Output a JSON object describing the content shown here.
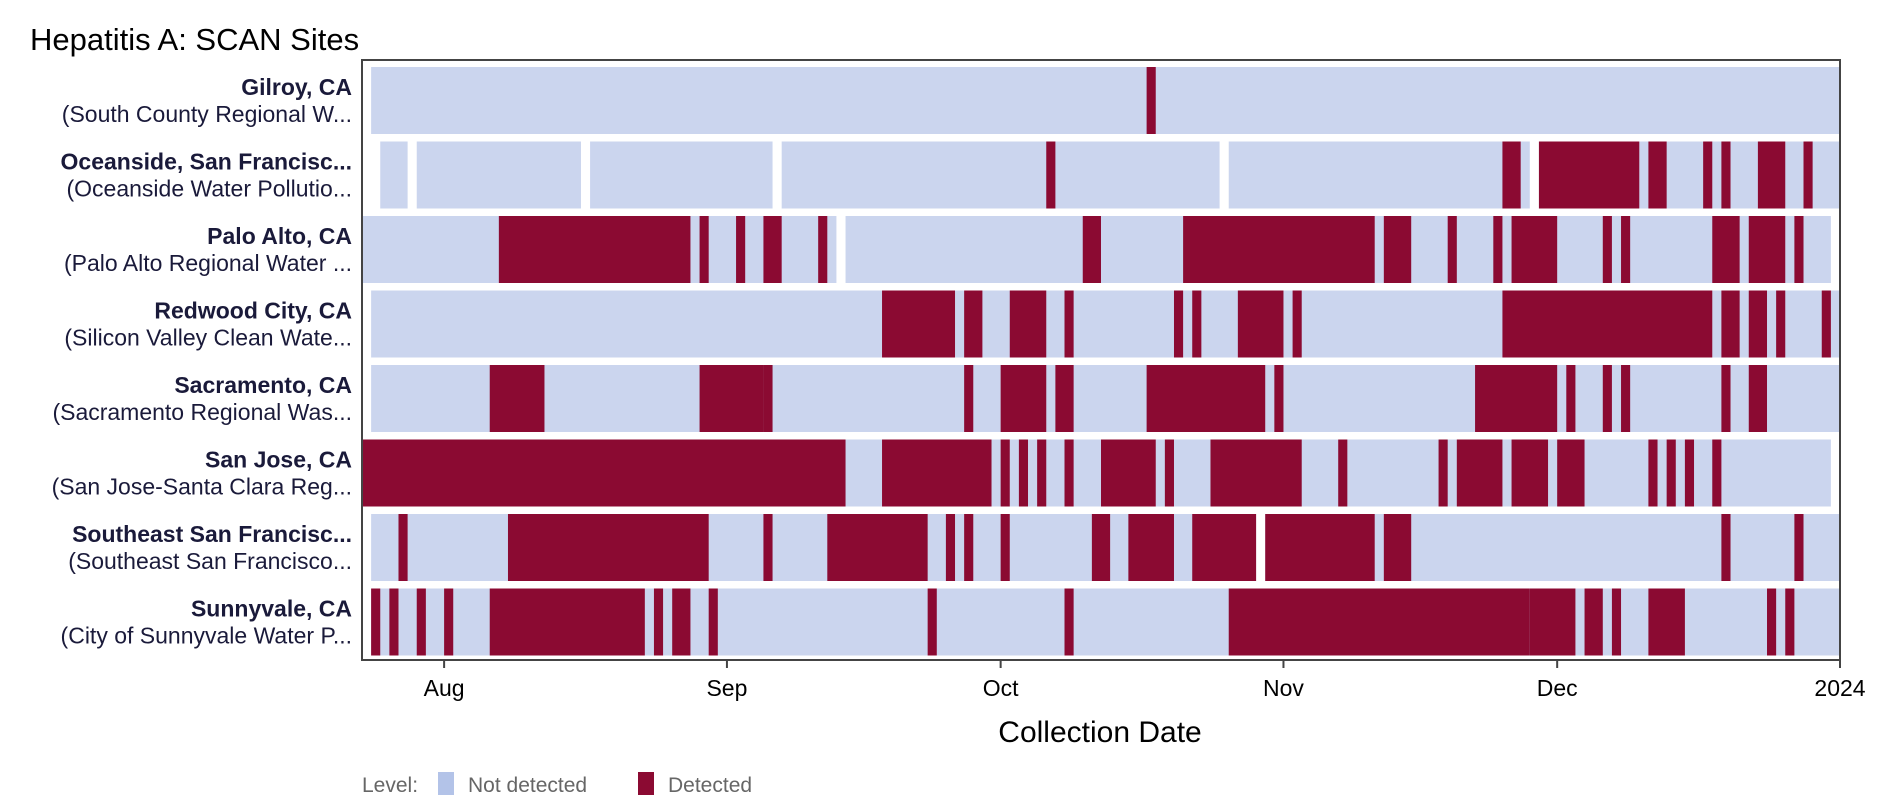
{
  "chart_data": {
    "type": "heatmap",
    "title": "Hepatitis A: SCAN Sites",
    "xlabel": "Collection Date",
    "ylabel": "",
    "x_range": [
      "2023-07-23",
      "2024-01-01"
    ],
    "x_ticks": [
      {
        "date": "2023-08-01",
        "label": "Aug"
      },
      {
        "date": "2023-09-01",
        "label": "Sep"
      },
      {
        "date": "2023-10-01",
        "label": "Oct"
      },
      {
        "date": "2023-11-01",
        "label": "Nov"
      },
      {
        "date": "2023-12-01",
        "label": "Dec"
      },
      {
        "date": "2024-01-01",
        "label": "2024"
      }
    ],
    "legend": {
      "title": "Level:",
      "position": "bottom-left",
      "entries": [
        {
          "label": "Not detected",
          "color": "#b3c3e8"
        },
        {
          "label": "Detected",
          "color": "#8b0a32"
        }
      ]
    },
    "colors": {
      "not_detected": "#cbd5ee",
      "detected": "#8b0a32",
      "frame": "#444444"
    },
    "sites": [
      {
        "name": "Gilroy, CA",
        "facility": "(South County Regional W...",
        "sampled": [
          [
            "2023-07-24",
            "2023-12-31"
          ]
        ],
        "detected": [
          [
            "2023-10-17",
            "2023-10-17"
          ]
        ]
      },
      {
        "name": "Oceanside, San Francisc...",
        "facility": "(Oceanside Water Pollutio...",
        "sampled": [
          [
            "2023-07-25",
            "2023-07-27"
          ],
          [
            "2023-07-29",
            "2023-08-15"
          ],
          [
            "2023-08-17",
            "2023-09-05"
          ],
          [
            "2023-09-07",
            "2023-10-24"
          ],
          [
            "2023-10-26",
            "2023-11-27"
          ],
          [
            "2023-11-29",
            "2023-12-31"
          ]
        ],
        "detected": [
          [
            "2023-10-06",
            "2023-10-06"
          ],
          [
            "2023-11-25",
            "2023-11-26"
          ],
          [
            "2023-11-29",
            "2023-12-09"
          ],
          [
            "2023-12-11",
            "2023-12-12"
          ],
          [
            "2023-12-17",
            "2023-12-17"
          ],
          [
            "2023-12-19",
            "2023-12-19"
          ],
          [
            "2023-12-23",
            "2023-12-25"
          ],
          [
            "2023-12-28",
            "2023-12-28"
          ]
        ]
      },
      {
        "name": "Palo Alto, CA",
        "facility": "(Palo Alto Regional Water ...",
        "sampled": [
          [
            "2023-07-23",
            "2023-09-12"
          ],
          [
            "2023-09-14",
            "2023-12-30"
          ]
        ],
        "detected": [
          [
            "2023-08-07",
            "2023-08-27"
          ],
          [
            "2023-08-29",
            "2023-08-29"
          ],
          [
            "2023-09-02",
            "2023-09-02"
          ],
          [
            "2023-09-05",
            "2023-09-06"
          ],
          [
            "2023-09-11",
            "2023-09-11"
          ],
          [
            "2023-10-10",
            "2023-10-11"
          ],
          [
            "2023-10-21",
            "2023-11-10"
          ],
          [
            "2023-11-12",
            "2023-11-14"
          ],
          [
            "2023-11-19",
            "2023-11-19"
          ],
          [
            "2023-11-24",
            "2023-11-24"
          ],
          [
            "2023-11-26",
            "2023-11-30"
          ],
          [
            "2023-12-06",
            "2023-12-06"
          ],
          [
            "2023-12-08",
            "2023-12-08"
          ],
          [
            "2023-12-18",
            "2023-12-20"
          ],
          [
            "2023-12-22",
            "2023-12-25"
          ],
          [
            "2023-12-27",
            "2023-12-27"
          ]
        ]
      },
      {
        "name": "Redwood City, CA",
        "facility": "(Silicon Valley Clean Wate...",
        "sampled": [
          [
            "2023-07-24",
            "2023-12-31"
          ]
        ],
        "detected": [
          [
            "2023-09-18",
            "2023-09-25"
          ],
          [
            "2023-09-27",
            "2023-09-28"
          ],
          [
            "2023-10-02",
            "2023-10-05"
          ],
          [
            "2023-10-08",
            "2023-10-08"
          ],
          [
            "2023-10-20",
            "2023-10-20"
          ],
          [
            "2023-10-22",
            "2023-10-22"
          ],
          [
            "2023-10-27",
            "2023-10-31"
          ],
          [
            "2023-11-02",
            "2023-11-02"
          ],
          [
            "2023-11-25",
            "2023-12-17"
          ],
          [
            "2023-12-19",
            "2023-12-20"
          ],
          [
            "2023-12-22",
            "2023-12-23"
          ],
          [
            "2023-12-25",
            "2023-12-25"
          ],
          [
            "2023-12-30",
            "2023-12-30"
          ]
        ]
      },
      {
        "name": "Sacramento, CA",
        "facility": "(Sacramento Regional Was...",
        "sampled": [
          [
            "2023-07-24",
            "2023-12-31"
          ]
        ],
        "detected": [
          [
            "2023-08-06",
            "2023-08-11"
          ],
          [
            "2023-08-29",
            "2023-09-04"
          ],
          [
            "2023-09-05",
            "2023-09-05"
          ],
          [
            "2023-09-27",
            "2023-09-27"
          ],
          [
            "2023-10-01",
            "2023-10-05"
          ],
          [
            "2023-10-07",
            "2023-10-08"
          ],
          [
            "2023-10-17",
            "2023-10-29"
          ],
          [
            "2023-10-31",
            "2023-10-31"
          ],
          [
            "2023-11-22",
            "2023-11-30"
          ],
          [
            "2023-12-02",
            "2023-12-02"
          ],
          [
            "2023-12-06",
            "2023-12-06"
          ],
          [
            "2023-12-08",
            "2023-12-08"
          ],
          [
            "2023-12-19",
            "2023-12-19"
          ],
          [
            "2023-12-22",
            "2023-12-23"
          ]
        ]
      },
      {
        "name": "San Jose, CA",
        "facility": "(San Jose-Santa Clara Reg...",
        "sampled": [
          [
            "2023-07-23",
            "2023-12-30"
          ]
        ],
        "detected": [
          [
            "2023-07-23",
            "2023-09-13"
          ],
          [
            "2023-09-18",
            "2023-09-29"
          ],
          [
            "2023-10-01",
            "2023-10-01"
          ],
          [
            "2023-10-03",
            "2023-10-03"
          ],
          [
            "2023-10-05",
            "2023-10-05"
          ],
          [
            "2023-10-08",
            "2023-10-08"
          ],
          [
            "2023-10-12",
            "2023-10-17"
          ],
          [
            "2023-10-19",
            "2023-10-19"
          ],
          [
            "2023-10-24",
            "2023-11-02"
          ],
          [
            "2023-11-07",
            "2023-11-07"
          ],
          [
            "2023-11-18",
            "2023-11-18"
          ],
          [
            "2023-11-20",
            "2023-11-24"
          ],
          [
            "2023-11-26",
            "2023-11-29"
          ],
          [
            "2023-11-31",
            "2023-12-03"
          ],
          [
            "2023-12-11",
            "2023-12-11"
          ],
          [
            "2023-12-13",
            "2023-12-13"
          ],
          [
            "2023-12-15",
            "2023-12-15"
          ],
          [
            "2023-12-18",
            "2023-12-18"
          ]
        ]
      },
      {
        "name": "Southeast San Francisc...",
        "facility": "(Southeast San Francisco...",
        "sampled": [
          [
            "2023-07-24",
            "2023-10-28"
          ],
          [
            "2023-10-30",
            "2023-12-31"
          ]
        ],
        "detected": [
          [
            "2023-07-27",
            "2023-07-27"
          ],
          [
            "2023-08-08",
            "2023-08-29"
          ],
          [
            "2023-09-05",
            "2023-09-05"
          ],
          [
            "2023-09-12",
            "2023-09-22"
          ],
          [
            "2023-09-25",
            "2023-09-25"
          ],
          [
            "2023-09-27",
            "2023-09-27"
          ],
          [
            "2023-10-01",
            "2023-10-01"
          ],
          [
            "2023-10-11",
            "2023-10-12"
          ],
          [
            "2023-10-15",
            "2023-10-19"
          ],
          [
            "2023-10-22",
            "2023-10-28"
          ],
          [
            "2023-10-30",
            "2023-11-10"
          ],
          [
            "2023-11-12",
            "2023-11-14"
          ],
          [
            "2023-12-19",
            "2023-12-19"
          ],
          [
            "2023-12-27",
            "2023-12-27"
          ]
        ]
      },
      {
        "name": "Sunnyvale, CA",
        "facility": "(City of Sunnyvale Water P...",
        "sampled": [
          [
            "2023-07-24",
            "2023-12-31"
          ]
        ],
        "detected": [
          [
            "2023-07-24",
            "2023-07-24"
          ],
          [
            "2023-07-26",
            "2023-07-26"
          ],
          [
            "2023-07-29",
            "2023-07-29"
          ],
          [
            "2023-08-01",
            "2023-08-01"
          ],
          [
            "2023-08-06",
            "2023-08-22"
          ],
          [
            "2023-08-24",
            "2023-08-24"
          ],
          [
            "2023-08-26",
            "2023-08-27"
          ],
          [
            "2023-08-30",
            "2023-08-30"
          ],
          [
            "2023-09-23",
            "2023-09-23"
          ],
          [
            "2023-10-08",
            "2023-10-08"
          ],
          [
            "2023-10-26",
            "2023-11-27"
          ],
          [
            "2023-11-28",
            "2023-12-02"
          ],
          [
            "2023-12-04",
            "2023-12-05"
          ],
          [
            "2023-12-07",
            "2023-12-07"
          ],
          [
            "2023-12-11",
            "2023-12-14"
          ],
          [
            "2023-12-24",
            "2023-12-24"
          ],
          [
            "2023-12-26",
            "2023-12-26"
          ]
        ]
      }
    ]
  }
}
